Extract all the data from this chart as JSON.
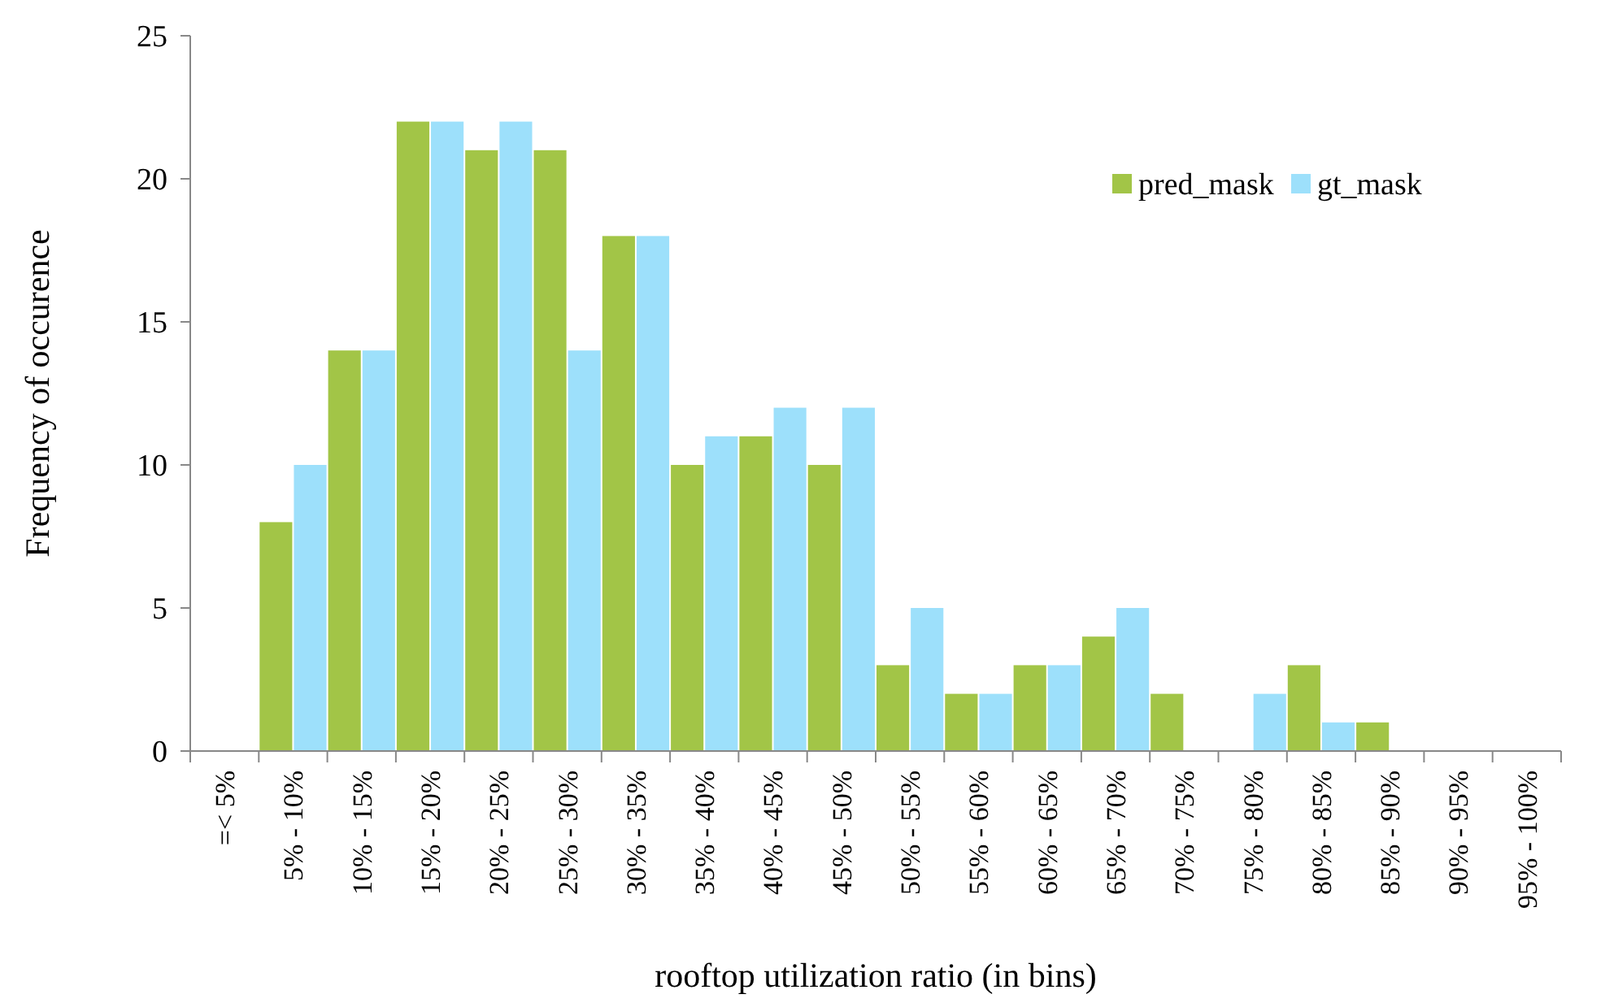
{
  "chart_data": {
    "type": "bar",
    "xlabel": "rooftop utilization ratio (in bins)",
    "ylabel": "Frequency of occurence",
    "categories": [
      "=< 5%",
      "5% - 10%",
      "10% - 15%",
      "15% - 20%",
      "20% - 25%",
      "25% - 30%",
      "30% - 35%",
      "35% - 40%",
      "40% - 45%",
      "45% - 50%",
      "50% - 55%",
      "55% - 60%",
      "60% - 65%",
      "65% - 70%",
      "70% - 75%",
      "75% - 80%",
      "80% - 85%",
      "85% - 90%",
      "90% - 95%",
      "95% - 100%"
    ],
    "series": [
      {
        "name": "pred_mask",
        "color": "#a2c547",
        "values": [
          0,
          8,
          14,
          22,
          21,
          21,
          18,
          10,
          11,
          10,
          3,
          2,
          3,
          4,
          2,
          0,
          3,
          1,
          0,
          0
        ]
      },
      {
        "name": "gt_mask",
        "color": "#9de0fb",
        "values": [
          0,
          10,
          14,
          22,
          22,
          14,
          18,
          11,
          12,
          12,
          5,
          2,
          3,
          5,
          0,
          2,
          1,
          0,
          0,
          0
        ]
      }
    ],
    "ylim": [
      0,
      25
    ],
    "yticks": [
      0,
      5,
      10,
      15,
      20,
      25
    ],
    "grid": false,
    "legend": "top right"
  }
}
